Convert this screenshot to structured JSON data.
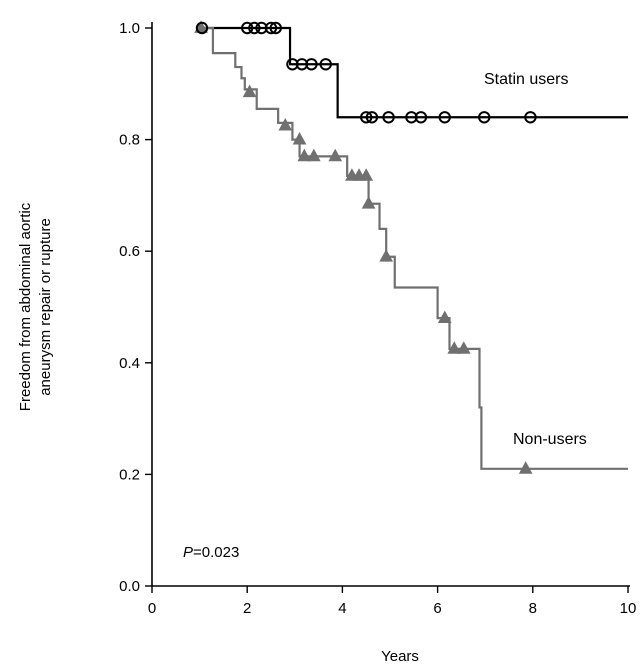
{
  "chart_data": {
    "type": "line",
    "title": "",
    "xlabel": "Years",
    "ylabel_lines": [
      "Freedom from abdominal aortic",
      "aneurysm repair or rupture"
    ],
    "xlim": [
      0,
      10
    ],
    "ylim": [
      0,
      1.0
    ],
    "xticks": [
      0,
      2,
      4,
      6,
      8,
      10
    ],
    "yticks": [
      "0.0",
      "0.2",
      "0.4",
      "0.6",
      "0.8",
      "1.0"
    ],
    "annotation": {
      "prefix": "P",
      "text": "=0.023"
    },
    "series": [
      {
        "name": "Statin users",
        "color": "#000000",
        "marker": "circle",
        "steps": [
          [
            0.98,
            1.0
          ],
          [
            2.9,
            0.935
          ],
          [
            3.9,
            0.84
          ],
          [
            10.0,
            0.84
          ]
        ],
        "censored": [
          [
            1.05,
            1.0
          ],
          [
            2.0,
            1.0
          ],
          [
            2.15,
            1.0
          ],
          [
            2.3,
            1.0
          ],
          [
            2.5,
            1.0
          ],
          [
            2.6,
            1.0
          ],
          [
            2.95,
            0.935
          ],
          [
            3.15,
            0.935
          ],
          [
            3.35,
            0.935
          ],
          [
            3.65,
            0.935
          ],
          [
            4.5,
            0.84
          ],
          [
            4.62,
            0.84
          ],
          [
            4.97,
            0.84
          ],
          [
            5.45,
            0.84
          ],
          [
            5.65,
            0.84
          ],
          [
            6.15,
            0.84
          ],
          [
            6.98,
            0.84
          ],
          [
            7.95,
            0.84
          ]
        ]
      },
      {
        "name": "Non-users",
        "color": "#707070",
        "marker": "triangle",
        "steps": [
          [
            0.98,
            1.0
          ],
          [
            1.28,
            0.955
          ],
          [
            1.75,
            0.93
          ],
          [
            1.88,
            0.91
          ],
          [
            1.95,
            0.89
          ],
          [
            2.2,
            0.855
          ],
          [
            2.65,
            0.83
          ],
          [
            2.95,
            0.8
          ],
          [
            3.1,
            0.77
          ],
          [
            4.1,
            0.735
          ],
          [
            4.55,
            0.685
          ],
          [
            4.78,
            0.64
          ],
          [
            4.92,
            0.59
          ],
          [
            5.1,
            0.535
          ],
          [
            6.0,
            0.48
          ],
          [
            6.25,
            0.425
          ],
          [
            6.88,
            0.32
          ],
          [
            6.92,
            0.21
          ],
          [
            10.0,
            0.21
          ]
        ],
        "censored": [
          [
            1.03,
            1.0
          ],
          [
            2.05,
            0.885
          ],
          [
            2.8,
            0.825
          ],
          [
            3.1,
            0.8
          ],
          [
            3.2,
            0.77
          ],
          [
            3.4,
            0.77
          ],
          [
            3.85,
            0.77
          ],
          [
            4.2,
            0.735
          ],
          [
            4.35,
            0.735
          ],
          [
            4.5,
            0.735
          ],
          [
            4.55,
            0.685
          ],
          [
            4.92,
            0.59
          ],
          [
            6.15,
            0.48
          ],
          [
            6.35,
            0.425
          ],
          [
            6.55,
            0.425
          ],
          [
            7.85,
            0.21
          ]
        ]
      }
    ]
  }
}
